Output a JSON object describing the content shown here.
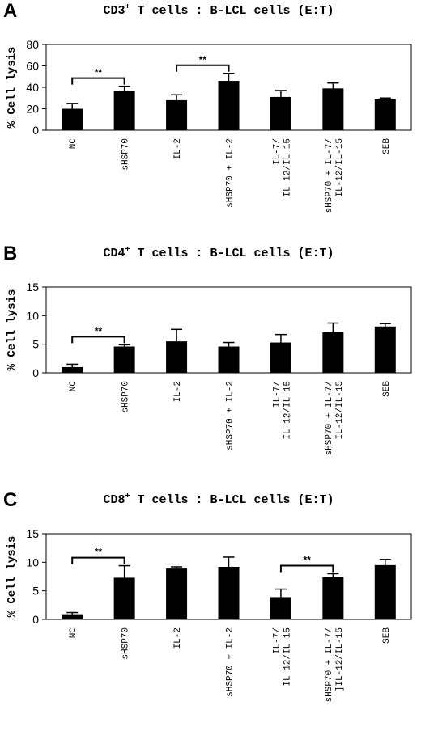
{
  "chart_data": [
    {
      "type": "bar",
      "panel_label": "A",
      "title_pre": "CD3",
      "title_sup": "+",
      "title_post": " T cells : B-LCL cells (E:T)",
      "ylabel": "% Cell lysis",
      "ylim": [
        0,
        80
      ],
      "yticks": [
        "0",
        "20",
        "40",
        "60",
        "80"
      ],
      "categories": [
        "NC",
        "sHSP70",
        "IL-2",
        "sHSP70 + IL-2",
        "IL-7/\nIL-12/IL-15",
        "sHSP70 + IL-7/\nIL-12/IL-15",
        "SEB"
      ],
      "values": [
        20,
        37,
        28,
        46,
        31,
        39,
        29
      ],
      "errors": [
        5,
        4,
        5,
        7,
        6,
        5,
        1
      ],
      "significance": [
        {
          "from": 0,
          "to": 1,
          "label": "**"
        },
        {
          "from": 2,
          "to": 3,
          "label": "**"
        }
      ],
      "bar_color": "#000000",
      "grid": false
    },
    {
      "type": "bar",
      "panel_label": "B",
      "title_pre": "CD4",
      "title_sup": "+",
      "title_post": " T cells : B-LCL cells (E:T)",
      "ylabel": "% Cell lysis",
      "ylim": [
        0,
        15
      ],
      "yticks": [
        "0",
        "5",
        "10",
        "15"
      ],
      "categories": [
        "NC",
        "sHSP70",
        "IL-2",
        "sHSP70 + IL-2",
        "IL-7/\nIL-12/IL-15",
        "sHSP70 + IL-7/\nIL-12/IL-15",
        "SEB"
      ],
      "values": [
        1,
        4.6,
        5.5,
        4.6,
        5.3,
        7.1,
        8.1
      ],
      "errors": [
        0.5,
        0.3,
        2.1,
        0.7,
        1.4,
        1.6,
        0.5
      ],
      "significance": [
        {
          "from": 0,
          "to": 1,
          "label": "**"
        }
      ],
      "bar_color": "#000000",
      "grid": false
    },
    {
      "type": "bar",
      "panel_label": "C",
      "title_pre": "CD8",
      "title_sup": "+",
      "title_post": " T cells : B-LCL cells (E:T)",
      "ylabel": "% Cell lysis",
      "ylim": [
        0,
        15
      ],
      "yticks": [
        "0",
        "5",
        "10",
        "15"
      ],
      "categories": [
        "NC",
        "sHSP70",
        "IL-2",
        "sHSP70 + IL-2",
        "IL-7/\nIL-12/IL-15",
        "sHSP70 + IL-7/\n]IL-12/IL-15",
        "SEB"
      ],
      "values": [
        0.9,
        7.3,
        8.9,
        9.2,
        3.9,
        7.4,
        9.5
      ],
      "errors": [
        0.3,
        2.1,
        0.3,
        1.7,
        1.4,
        0.6,
        1.0
      ],
      "significance": [
        {
          "from": 0,
          "to": 1,
          "label": "**"
        },
        {
          "from": 4,
          "to": 5,
          "label": "**"
        }
      ],
      "bar_color": "#000000",
      "grid": false
    }
  ]
}
